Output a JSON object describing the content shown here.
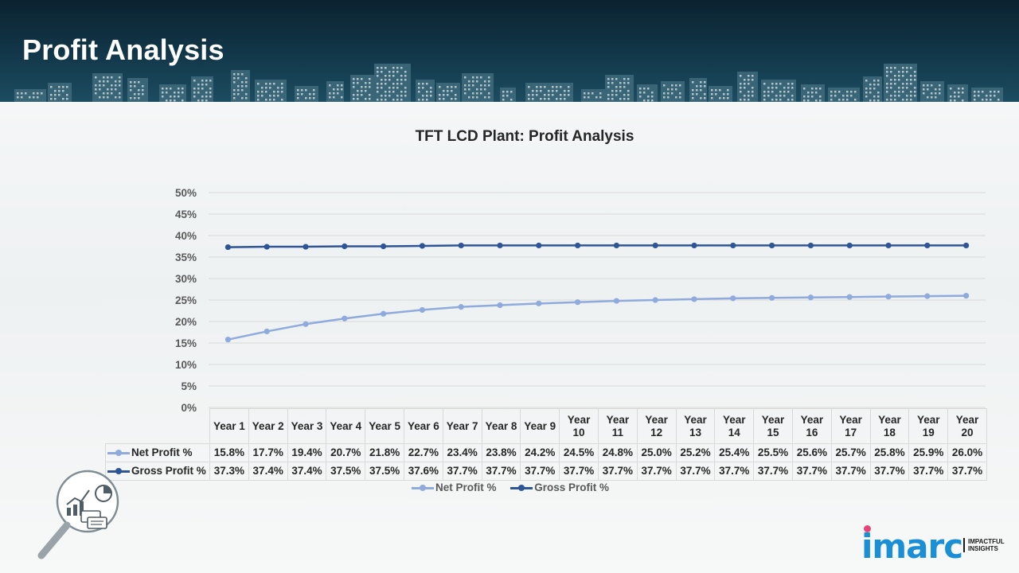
{
  "page": {
    "title": "Profit Analysis"
  },
  "chart_data": {
    "type": "line",
    "title": "TFT LCD Plant: Profit Analysis",
    "categories": [
      "Year 1",
      "Year 2",
      "Year 3",
      "Year 4",
      "Year 5",
      "Year 6",
      "Year 7",
      "Year 8",
      "Year 9",
      "Year 10",
      "Year 11",
      "Year 12",
      "Year 13",
      "Year 14",
      "Year 15",
      "Year 16",
      "Year 17",
      "Year 18",
      "Year 19",
      "Year 20"
    ],
    "series": [
      {
        "name": "Net Profit %",
        "color": "#8faadc",
        "values": [
          15.8,
          17.7,
          19.4,
          20.7,
          21.8,
          22.7,
          23.4,
          23.8,
          24.2,
          24.5,
          24.8,
          25.0,
          25.2,
          25.4,
          25.5,
          25.6,
          25.7,
          25.8,
          25.9,
          26.0
        ],
        "labels": [
          "15.8%",
          "17.7%",
          "19.4%",
          "20.7%",
          "21.8%",
          "22.7%",
          "23.4%",
          "23.8%",
          "24.2%",
          "24.5%",
          "24.8%",
          "25.0%",
          "25.2%",
          "25.4%",
          "25.5%",
          "25.6%",
          "25.7%",
          "25.8%",
          "25.9%",
          "26.0%"
        ]
      },
      {
        "name": "Gross Profit %",
        "color": "#2e5597",
        "values": [
          37.3,
          37.4,
          37.4,
          37.5,
          37.5,
          37.6,
          37.7,
          37.7,
          37.7,
          37.7,
          37.7,
          37.7,
          37.7,
          37.7,
          37.7,
          37.7,
          37.7,
          37.7,
          37.7,
          37.7
        ],
        "labels": [
          "37.3%",
          "37.4%",
          "37.4%",
          "37.5%",
          "37.5%",
          "37.6%",
          "37.7%",
          "37.7%",
          "37.7%",
          "37.7%",
          "37.7%",
          "37.7%",
          "37.7%",
          "37.7%",
          "37.7%",
          "37.7%",
          "37.7%",
          "37.7%",
          "37.7%",
          "37.7%"
        ]
      }
    ],
    "ylim": [
      0,
      50
    ],
    "y_ticks": [
      "0%",
      "5%",
      "10%",
      "15%",
      "20%",
      "25%",
      "30%",
      "35%",
      "40%",
      "45%",
      "50%"
    ],
    "grid": true,
    "legend": "bottom",
    "data_table": true
  },
  "icons": {
    "badge": "magnifier-analytics-icon"
  },
  "logo": {
    "text": "imarc",
    "tagline_1": "IMPACTFUL",
    "tagline_2": "INSIGHTS"
  }
}
